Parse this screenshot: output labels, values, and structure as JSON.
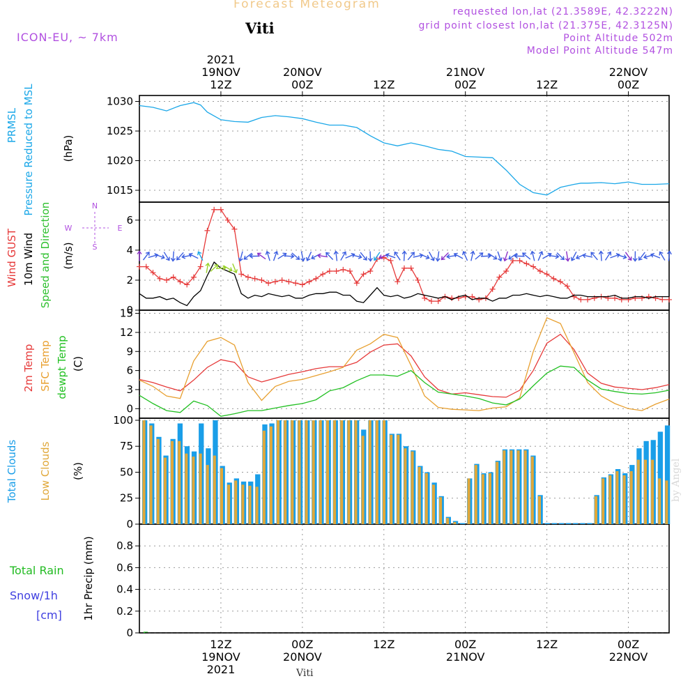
{
  "header": {
    "title": "Forecast Meteogram",
    "location": "Viti",
    "model": "ICON-EU, ~ 7km",
    "requested": "requested lon,lat (21.3589E, 42.3222N)",
    "grid_point": "grid point closest lon,lat (21.375E, 42.3125N)",
    "point_alt": "Point Altitude 502m",
    "model_alt": "Model Point Altitude 547m"
  },
  "footer": {
    "location": "Viti",
    "credit": "by Angel"
  },
  "colors": {
    "pressure": "#1aa7e8",
    "gust": "#e63939",
    "wind": "#000000",
    "dir_green": "#2ec02e",
    "temp2m": "#e63939",
    "sfc": "#e8a030",
    "dew": "#22c022",
    "total_clouds": "#1a9ee8",
    "low_clouds": "#e0a83a",
    "rain": "#22bb22",
    "snow": "#4040e0",
    "purple": "#b150e0"
  },
  "chart_data": [
    {
      "type": "line",
      "panel": "pressure",
      "ylabel": [
        "PRMSL",
        "Pressure Reduced to MSL",
        "(hPa)"
      ],
      "yticks": [
        1015,
        1020,
        1025,
        1030
      ],
      "ylim": [
        1013,
        1031
      ],
      "time_start_hours": 0,
      "time_end_hours": 78,
      "x_top_labels": [
        {
          "h": 12,
          "lines": [
            "2021",
            "19NOV",
            "12Z"
          ]
        },
        {
          "h": 24,
          "lines": [
            "20NOV",
            "00Z"
          ]
        },
        {
          "h": 36,
          "lines": [
            "12Z"
          ]
        },
        {
          "h": 48,
          "lines": [
            "21NOV",
            "00Z"
          ]
        },
        {
          "h": 60,
          "lines": [
            "12Z"
          ]
        },
        {
          "h": 72,
          "lines": [
            "22NOV",
            "00Z"
          ]
        }
      ],
      "series": [
        {
          "name": "PRMSL",
          "x": [
            0,
            2,
            4,
            6,
            8,
            9,
            10,
            12,
            14,
            16,
            18,
            20,
            22,
            24,
            26,
            28,
            30,
            32,
            34,
            36,
            38,
            40,
            42,
            44,
            46,
            48,
            50,
            52,
            54,
            56,
            58,
            60,
            62,
            64,
            65,
            66,
            68,
            70,
            72,
            74,
            76,
            78
          ],
          "values": [
            1029.3,
            1029.0,
            1028.4,
            1029.3,
            1029.8,
            1029.4,
            1028.2,
            1026.9,
            1026.6,
            1026.5,
            1027.3,
            1027.6,
            1027.4,
            1027.1,
            1026.5,
            1026.0,
            1026.0,
            1025.6,
            1024.2,
            1023.0,
            1022.5,
            1023.0,
            1022.5,
            1021.9,
            1021.6,
            1020.7,
            1020.6,
            1020.5,
            1018.4,
            1016.0,
            1014.6,
            1014.2,
            1015.5,
            1016.0,
            1016.2,
            1016.2,
            1016.3,
            1016.1,
            1016.4,
            1016.0,
            1016.0,
            1016.1
          ]
        }
      ]
    },
    {
      "type": "line",
      "panel": "wind",
      "ylabel": [
        "Wind GUST",
        "10m Wind",
        "Speed and Direction",
        "(m/s)"
      ],
      "compass": {
        "n": "N",
        "s": "S",
        "e": "E",
        "w": "W"
      },
      "yticks": [
        0,
        2,
        4,
        6
      ],
      "ylim": [
        0,
        7.2
      ],
      "series": [
        {
          "name": "Wind GUST",
          "x": [
            0,
            1,
            2,
            3,
            4,
            5,
            6,
            7,
            8,
            9,
            10,
            11,
            12,
            13,
            14,
            15,
            16,
            17,
            18,
            19,
            20,
            21,
            22,
            23,
            24,
            25,
            26,
            27,
            28,
            29,
            30,
            31,
            32,
            33,
            34,
            35,
            36,
            37,
            38,
            39,
            40,
            41,
            42,
            43,
            44,
            45,
            46,
            47,
            48,
            49,
            50,
            51,
            52,
            53,
            54,
            55,
            56,
            57,
            58,
            59,
            60,
            61,
            62,
            63,
            64,
            65,
            66,
            67,
            68,
            69,
            70,
            71,
            72,
            73,
            74,
            75,
            76,
            77,
            78
          ],
          "values": [
            2.9,
            2.9,
            2.5,
            2.1,
            2.0,
            2.2,
            1.9,
            1.7,
            2.2,
            2.9,
            5.3,
            6.7,
            6.7,
            6.0,
            5.4,
            2.4,
            2.2,
            2.1,
            2.0,
            1.8,
            1.9,
            2.0,
            1.9,
            1.8,
            1.7,
            1.9,
            2.1,
            2.4,
            2.6,
            2.6,
            2.7,
            2.6,
            1.8,
            2.4,
            2.6,
            3.4,
            3.5,
            3.3,
            1.9,
            2.8,
            2.8,
            2.0,
            0.8,
            0.6,
            0.6,
            0.9,
            0.8,
            0.8,
            0.9,
            0.9,
            0.7,
            0.8,
            1.4,
            2.2,
            2.6,
            3.3,
            3.3,
            3.1,
            2.9,
            2.6,
            2.4,
            2.1,
            1.9,
            1.6,
            0.9,
            0.7,
            0.7,
            0.8,
            0.9,
            0.8,
            0.8,
            0.7,
            0.7,
            0.8,
            0.8,
            0.9,
            0.8,
            0.7,
            0.7
          ]
        },
        {
          "name": "10m Wind",
          "x": [
            0,
            1,
            2,
            3,
            4,
            5,
            6,
            7,
            8,
            9,
            10,
            11,
            12,
            13,
            14,
            15,
            16,
            17,
            18,
            19,
            20,
            21,
            22,
            23,
            24,
            25,
            26,
            27,
            28,
            29,
            30,
            31,
            32,
            33,
            34,
            35,
            36,
            37,
            38,
            39,
            40,
            41,
            42,
            43,
            44,
            45,
            46,
            47,
            48,
            49,
            50,
            51,
            52,
            53,
            54,
            55,
            56,
            57,
            58,
            59,
            60,
            61,
            62,
            63,
            64,
            65,
            66,
            67,
            68,
            69,
            70,
            71,
            72,
            73,
            74,
            75,
            76,
            77,
            78
          ],
          "values": [
            1.1,
            0.8,
            0.8,
            0.9,
            0.7,
            0.8,
            0.5,
            0.3,
            0.9,
            1.3,
            2.3,
            3.2,
            2.8,
            2.6,
            2.4,
            1.1,
            0.8,
            1.0,
            0.9,
            1.1,
            1.0,
            0.9,
            1.0,
            0.8,
            0.8,
            1.0,
            1.1,
            1.1,
            1.2,
            1.2,
            1.0,
            1.0,
            0.6,
            0.5,
            1.0,
            1.5,
            1.0,
            0.9,
            1.0,
            0.8,
            0.9,
            1.1,
            1.0,
            0.9,
            0.8,
            0.9,
            0.7,
            0.9,
            1.0,
            0.7,
            0.8,
            0.8,
            0.6,
            0.8,
            0.8,
            1.0,
            1.0,
            1.1,
            1.0,
            0.9,
            1.0,
            0.9,
            0.8,
            0.8,
            1.0,
            1.0,
            0.9,
            0.9,
            0.9,
            0.9,
            1.0,
            0.8,
            0.8,
            0.9,
            0.9,
            0.8,
            0.9,
            0.9,
            0.9
          ]
        }
      ]
    },
    {
      "type": "line",
      "panel": "temperature",
      "ylabel": [
        "2m Temp",
        "SFC Temp",
        "dewpt Temp",
        "(C)"
      ],
      "yticks": [
        0,
        3,
        6,
        9,
        12,
        15
      ],
      "ylim": [
        -1.5,
        15.5
      ],
      "series": [
        {
          "name": "2m Temp",
          "x": [
            0,
            2,
            4,
            6,
            8,
            10,
            12,
            14,
            16,
            18,
            20,
            22,
            24,
            26,
            28,
            30,
            32,
            34,
            36,
            38,
            40,
            42,
            44,
            46,
            48,
            50,
            52,
            54,
            56,
            58,
            60,
            62,
            64,
            66,
            68,
            70,
            72,
            74,
            76,
            78
          ],
          "values": [
            4.6,
            4.1,
            3.4,
            2.8,
            4.5,
            6.5,
            7.7,
            7.3,
            5.0,
            4.2,
            4.8,
            5.4,
            5.8,
            6.3,
            6.6,
            6.6,
            7.3,
            8.9,
            10.0,
            10.2,
            8.3,
            5.0,
            3.0,
            2.3,
            2.5,
            2.2,
            1.9,
            1.8,
            2.9,
            6.0,
            10.3,
            11.7,
            9.3,
            5.6,
            4.0,
            3.4,
            3.2,
            3.0,
            3.3,
            3.8
          ]
        },
        {
          "name": "SFC Temp",
          "x": [
            0,
            2,
            4,
            6,
            8,
            10,
            12,
            14,
            16,
            18,
            20,
            22,
            24,
            26,
            28,
            30,
            32,
            34,
            36,
            38,
            40,
            42,
            44,
            46,
            48,
            50,
            52,
            54,
            56,
            58,
            60,
            62,
            64,
            66,
            68,
            70,
            72,
            74,
            76,
            78
          ],
          "values": [
            4.5,
            3.5,
            2.0,
            1.6,
            7.5,
            10.6,
            11.2,
            10.0,
            4.1,
            1.3,
            3.5,
            4.3,
            4.6,
            5.2,
            5.8,
            6.5,
            9.2,
            10.2,
            11.7,
            11.2,
            6.8,
            2.0,
            0.2,
            -0.1,
            -0.2,
            -0.3,
            0.1,
            0.3,
            1.7,
            9.0,
            14.3,
            13.4,
            8.8,
            4.1,
            2.0,
            0.8,
            0.0,
            -0.3,
            0.7,
            1.5
          ]
        },
        {
          "name": "dewpt Temp",
          "x": [
            0,
            2,
            4,
            6,
            8,
            10,
            12,
            14,
            16,
            18,
            20,
            22,
            24,
            26,
            28,
            30,
            32,
            34,
            36,
            38,
            40,
            42,
            44,
            46,
            48,
            50,
            52,
            54,
            56,
            58,
            60,
            62,
            64,
            66,
            68,
            70,
            72,
            74,
            76,
            78
          ],
          "values": [
            2.1,
            0.8,
            -0.3,
            -0.6,
            1.2,
            0.5,
            -1.2,
            -0.8,
            -0.3,
            -0.3,
            0.1,
            0.5,
            0.8,
            1.4,
            2.8,
            3.3,
            4.4,
            5.3,
            5.3,
            5.1,
            6.0,
            4.1,
            2.6,
            2.3,
            2.0,
            1.6,
            0.9,
            0.6,
            1.5,
            3.6,
            5.6,
            6.7,
            6.5,
            4.5,
            3.1,
            2.7,
            2.4,
            2.3,
            2.5,
            2.9
          ]
        }
      ]
    },
    {
      "type": "bar",
      "panel": "clouds",
      "ylabel": [
        "Total Clouds",
        "Low Clouds",
        "(%)"
      ],
      "yticks": [
        0,
        25,
        50,
        75,
        100
      ],
      "ylim": [
        0,
        102
      ],
      "series": [
        {
          "name": "Total Clouds",
          "values": [
            100,
            97,
            84,
            66,
            82,
            97,
            75,
            70,
            97,
            73,
            100,
            56,
            40,
            44,
            41,
            41,
            48,
            96,
            97,
            100,
            100,
            100,
            100,
            100,
            100,
            100,
            100,
            100,
            100,
            100,
            100,
            91,
            100,
            100,
            100,
            87,
            87,
            75,
            71,
            56,
            50,
            40,
            27,
            7,
            3,
            1,
            44,
            58,
            49,
            50,
            61,
            72,
            72,
            72,
            72,
            66,
            28,
            1,
            1,
            1,
            1,
            1,
            1,
            1,
            28,
            45,
            48,
            53,
            49,
            57,
            73,
            80,
            81,
            89,
            95
          ]
        },
        {
          "name": "Low Clouds",
          "values": [
            100,
            95,
            82,
            64,
            80,
            80,
            68,
            65,
            68,
            57,
            66,
            54,
            38,
            42,
            38,
            37,
            36,
            90,
            94,
            100,
            100,
            100,
            100,
            100,
            100,
            100,
            100,
            100,
            100,
            100,
            100,
            85,
            100,
            100,
            100,
            86,
            86,
            73,
            70,
            55,
            49,
            38,
            26,
            6,
            2,
            0,
            44,
            57,
            48,
            49,
            60,
            71,
            71,
            71,
            71,
            65,
            27,
            0,
            0,
            0,
            0,
            0,
            0,
            0,
            27,
            44,
            47,
            51,
            47,
            51,
            62,
            62,
            62,
            44,
            42
          ]
        }
      ]
    },
    {
      "type": "bar",
      "panel": "precip",
      "ylabel": [
        "1hr Precip (mm)"
      ],
      "legend_left": [
        "Total  Rain",
        "Snow/1h",
        "[cm]"
      ],
      "yticks": [
        0,
        0.2,
        0.4,
        0.6,
        0.8
      ],
      "ylim": [
        0,
        1.0
      ],
      "x_bottom_labels": [
        {
          "h": 12,
          "lines": [
            "12Z",
            "19NOV",
            "2021"
          ]
        },
        {
          "h": 24,
          "lines": [
            "00Z",
            "20NOV"
          ]
        },
        {
          "h": 36,
          "lines": [
            "12Z"
          ]
        },
        {
          "h": 48,
          "lines": [
            "00Z",
            "21NOV"
          ]
        },
        {
          "h": 60,
          "lines": [
            "12Z"
          ]
        },
        {
          "h": 72,
          "lines": [
            "00Z",
            "22NOV"
          ]
        }
      ],
      "series": [
        {
          "name": "Total Rain",
          "values": [
            0.01
          ]
        }
      ]
    }
  ]
}
